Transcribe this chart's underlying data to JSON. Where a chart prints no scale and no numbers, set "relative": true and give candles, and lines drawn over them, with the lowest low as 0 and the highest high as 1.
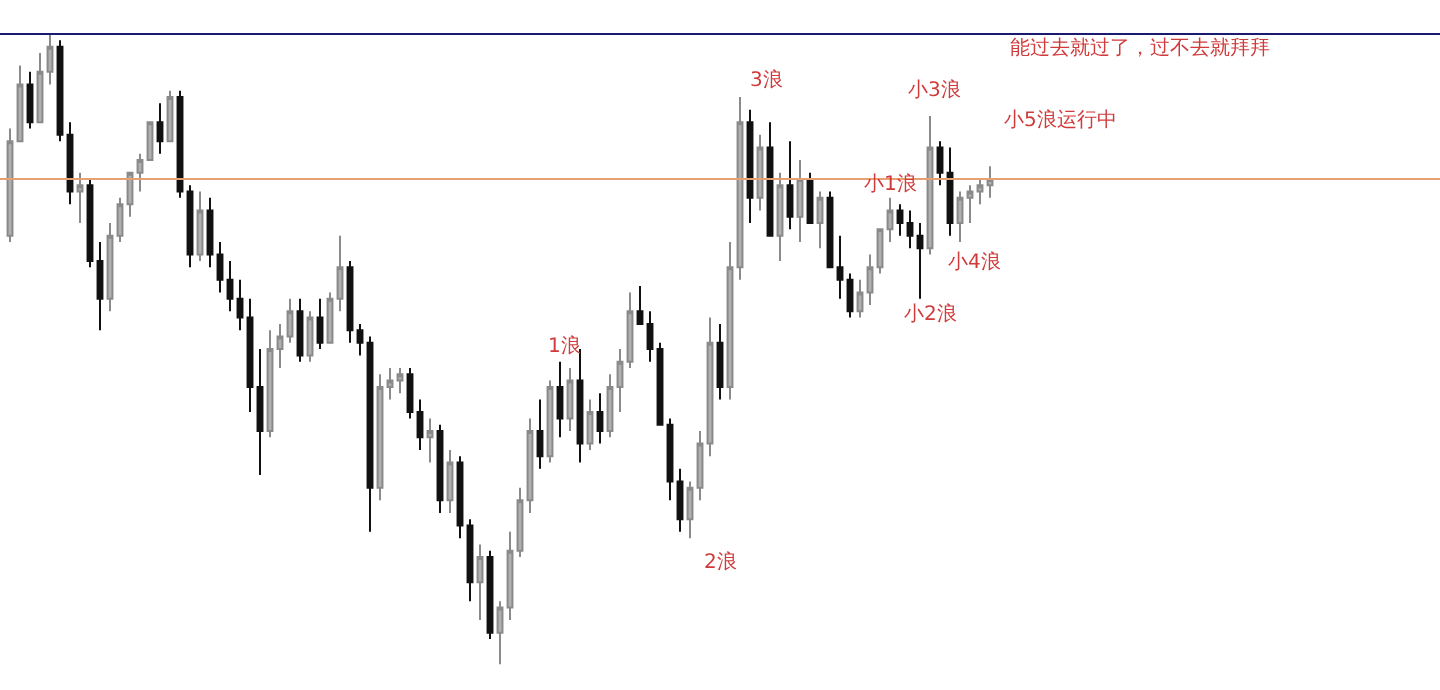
{
  "chart_data": {
    "type": "candlestick",
    "relative": true,
    "categories": [
      null,
      null,
      null,
      null,
      null,
      null,
      null,
      null,
      null,
      null,
      null,
      null,
      null,
      null,
      null,
      null,
      null,
      null,
      null,
      null,
      null,
      null,
      null,
      null,
      null,
      null,
      null,
      null,
      null,
      null,
      null,
      null,
      null,
      null,
      null,
      null,
      null,
      null,
      null,
      null,
      null,
      null,
      null,
      null,
      null,
      null,
      null,
      null,
      null,
      null,
      null,
      null,
      null,
      null,
      null,
      null,
      null,
      null,
      null,
      null,
      null,
      null,
      null,
      null,
      null,
      null,
      null,
      null,
      null,
      null,
      null,
      null,
      null,
      null,
      null,
      null,
      null,
      null,
      null,
      null,
      null,
      null,
      null,
      null,
      null,
      null,
      null,
      null,
      null,
      null,
      null,
      null,
      null,
      null,
      null,
      null,
      null,
      null,
      null
    ],
    "ohlc": [
      [
        0.68,
        0.85,
        0.67,
        0.83
      ],
      [
        0.83,
        0.95,
        0.83,
        0.92
      ],
      [
        0.92,
        0.94,
        0.85,
        0.86
      ],
      [
        0.86,
        0.97,
        0.86,
        0.94
      ],
      [
        0.94,
        1.0,
        0.92,
        0.98
      ],
      [
        0.98,
        0.99,
        0.83,
        0.84
      ],
      [
        0.84,
        0.86,
        0.73,
        0.75
      ],
      [
        0.75,
        0.78,
        0.7,
        0.76
      ],
      [
        0.76,
        0.77,
        0.63,
        0.64
      ],
      [
        0.64,
        0.67,
        0.53,
        0.58
      ],
      [
        0.58,
        0.7,
        0.56,
        0.68
      ],
      [
        0.68,
        0.74,
        0.67,
        0.73
      ],
      [
        0.73,
        0.78,
        0.71,
        0.78
      ],
      [
        0.78,
        0.81,
        0.75,
        0.8
      ],
      [
        0.8,
        0.86,
        0.8,
        0.86
      ],
      [
        0.86,
        0.89,
        0.81,
        0.83
      ],
      [
        0.83,
        0.91,
        0.83,
        0.9
      ],
      [
        0.9,
        0.91,
        0.74,
        0.75
      ],
      [
        0.75,
        0.76,
        0.63,
        0.65
      ],
      [
        0.65,
        0.75,
        0.64,
        0.72
      ],
      [
        0.72,
        0.74,
        0.63,
        0.65
      ],
      [
        0.65,
        0.67,
        0.59,
        0.61
      ],
      [
        0.61,
        0.64,
        0.56,
        0.58
      ],
      [
        0.58,
        0.61,
        0.53,
        0.55
      ],
      [
        0.55,
        0.58,
        0.4,
        0.44
      ],
      [
        0.44,
        0.5,
        0.3,
        0.37
      ],
      [
        0.37,
        0.53,
        0.36,
        0.5
      ],
      [
        0.5,
        0.54,
        0.47,
        0.52
      ],
      [
        0.52,
        0.58,
        0.51,
        0.56
      ],
      [
        0.56,
        0.58,
        0.48,
        0.49
      ],
      [
        0.49,
        0.56,
        0.48,
        0.55
      ],
      [
        0.55,
        0.58,
        0.5,
        0.51
      ],
      [
        0.51,
        0.59,
        0.51,
        0.58
      ],
      [
        0.58,
        0.68,
        0.56,
        0.63
      ],
      [
        0.63,
        0.64,
        0.51,
        0.53
      ],
      [
        0.53,
        0.54,
        0.49,
        0.51
      ],
      [
        0.51,
        0.52,
        0.21,
        0.28
      ],
      [
        0.28,
        0.46,
        0.26,
        0.44
      ],
      [
        0.44,
        0.47,
        0.42,
        0.45
      ],
      [
        0.45,
        0.47,
        0.43,
        0.46
      ],
      [
        0.46,
        0.47,
        0.39,
        0.4
      ],
      [
        0.4,
        0.42,
        0.34,
        0.36
      ],
      [
        0.36,
        0.39,
        0.32,
        0.37
      ],
      [
        0.37,
        0.38,
        0.24,
        0.26
      ],
      [
        0.26,
        0.34,
        0.24,
        0.32
      ],
      [
        0.32,
        0.33,
        0.2,
        0.22
      ],
      [
        0.22,
        0.23,
        0.1,
        0.13
      ],
      [
        0.13,
        0.19,
        0.07,
        0.17
      ],
      [
        0.17,
        0.18,
        0.04,
        0.05
      ],
      [
        0.05,
        0.1,
        0.0,
        0.09
      ],
      [
        0.09,
        0.21,
        0.07,
        0.18
      ],
      [
        0.18,
        0.28,
        0.17,
        0.26
      ],
      [
        0.26,
        0.39,
        0.24,
        0.37
      ],
      [
        0.37,
        0.42,
        0.31,
        0.33
      ],
      [
        0.33,
        0.45,
        0.32,
        0.44
      ],
      [
        0.44,
        0.48,
        0.36,
        0.39
      ],
      [
        0.39,
        0.47,
        0.37,
        0.45
      ],
      [
        0.45,
        0.5,
        0.32,
        0.35
      ],
      [
        0.35,
        0.42,
        0.34,
        0.4
      ],
      [
        0.4,
        0.43,
        0.35,
        0.37
      ],
      [
        0.37,
        0.46,
        0.36,
        0.44
      ],
      [
        0.44,
        0.5,
        0.4,
        0.48
      ],
      [
        0.48,
        0.59,
        0.47,
        0.56
      ],
      [
        0.56,
        0.6,
        0.54,
        0.54
      ],
      [
        0.54,
        0.56,
        0.48,
        0.5
      ],
      [
        0.5,
        0.51,
        0.38,
        0.38
      ],
      [
        0.38,
        0.39,
        0.26,
        0.29
      ],
      [
        0.29,
        0.31,
        0.21,
        0.23
      ],
      [
        0.23,
        0.29,
        0.2,
        0.28
      ],
      [
        0.28,
        0.37,
        0.26,
        0.35
      ],
      [
        0.35,
        0.55,
        0.33,
        0.51
      ],
      [
        0.51,
        0.54,
        0.42,
        0.44
      ],
      [
        0.44,
        0.67,
        0.42,
        0.63
      ],
      [
        0.63,
        0.9,
        0.61,
        0.86
      ],
      [
        0.86,
        0.88,
        0.7,
        0.74
      ],
      [
        0.74,
        0.84,
        0.72,
        0.82
      ],
      [
        0.82,
        0.86,
        0.68,
        0.68
      ],
      [
        0.68,
        0.78,
        0.64,
        0.76
      ],
      [
        0.76,
        0.83,
        0.69,
        0.71
      ],
      [
        0.71,
        0.8,
        0.67,
        0.77
      ],
      [
        0.77,
        0.78,
        0.7,
        0.7
      ],
      [
        0.7,
        0.75,
        0.66,
        0.74
      ],
      [
        0.74,
        0.75,
        0.63,
        0.63
      ],
      [
        0.63,
        0.68,
        0.58,
        0.61
      ],
      [
        0.61,
        0.62,
        0.55,
        0.56
      ],
      [
        0.56,
        0.61,
        0.55,
        0.59
      ],
      [
        0.59,
        0.65,
        0.57,
        0.63
      ],
      [
        0.63,
        0.69,
        0.62,
        0.69
      ],
      [
        0.69,
        0.74,
        0.67,
        0.72
      ],
      [
        0.72,
        0.73,
        0.68,
        0.7
      ],
      [
        0.7,
        0.72,
        0.66,
        0.68
      ],
      [
        0.68,
        0.7,
        0.58,
        0.66
      ],
      [
        0.66,
        0.87,
        0.65,
        0.82
      ],
      [
        0.82,
        0.83,
        0.76,
        0.78
      ],
      [
        0.78,
        0.82,
        0.68,
        0.7
      ],
      [
        0.7,
        0.75,
        0.67,
        0.74
      ],
      [
        0.74,
        0.76,
        0.7,
        0.75
      ],
      [
        0.75,
        0.77,
        0.73,
        0.76
      ],
      [
        0.76,
        0.79,
        0.74,
        0.77
      ]
    ],
    "ref_lines": [
      {
        "axis": "y",
        "value": 1.0,
        "color": "#1a1a70"
      },
      {
        "axis": "y",
        "value": 0.77,
        "color": "#e8a070"
      }
    ],
    "annotations": [
      "3浪",
      "1浪",
      "2浪",
      "小1浪",
      "小2浪",
      "小3浪",
      "小4浪",
      "小5浪运行中",
      "能过去就过了，过不去就拜拜"
    ],
    "legend": false
  }
}
